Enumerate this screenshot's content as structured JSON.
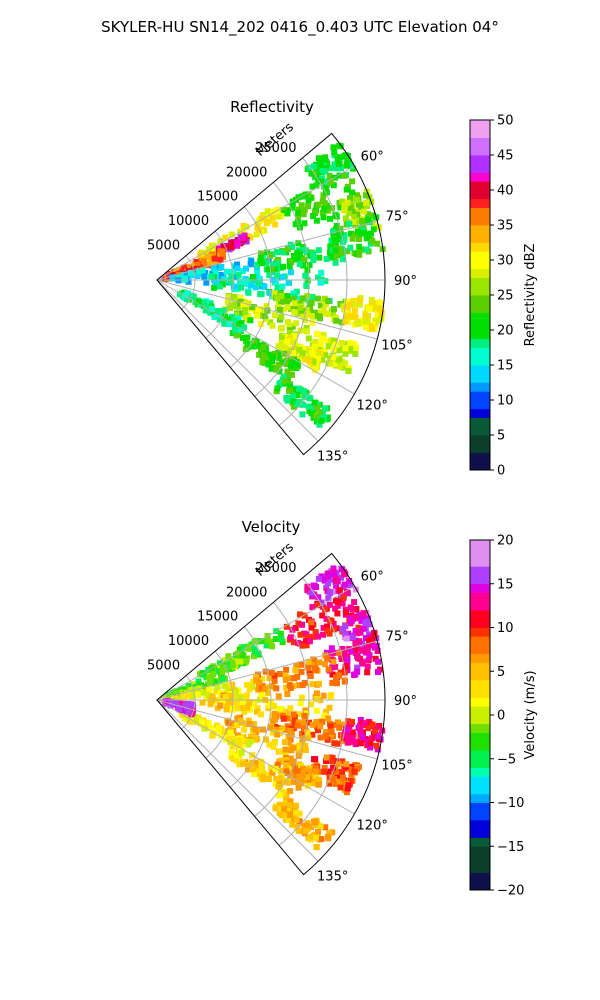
{
  "figure": {
    "suptitle": "SKYLER-HU  SN14_202  0416_0.403 UTC Elevation 04°"
  },
  "chart_data": [
    {
      "type": "heatmap",
      "subtype": "polar-sector (PPI)",
      "title": "Reflectivity",
      "range_axis_label": "Meters",
      "range_ticks": [
        "5000",
        "10000",
        "15000",
        "20000",
        "25000"
      ],
      "range_tick_values": [
        5000,
        10000,
        15000,
        20000,
        25000
      ],
      "range_limit": 30000,
      "azimuth_limits_deg": [
        50,
        140
      ],
      "azimuth_ticks": [
        "60°",
        "75°",
        "90°",
        "105°",
        "120°",
        "135°"
      ],
      "azimuth_tick_values": [
        60,
        75,
        90,
        105,
        120,
        135
      ],
      "grid": true,
      "colorbar": {
        "label": "Reflectivity dBZ",
        "min": 0,
        "max": 50,
        "ticks": [
          "0",
          "5",
          "10",
          "15",
          "20",
          "25",
          "30",
          "35",
          "40",
          "45",
          "50"
        ],
        "tick_values": [
          0,
          5,
          10,
          15,
          20,
          25,
          30,
          35,
          40,
          45,
          50
        ]
      },
      "echo_regions": [
        {
          "az": 57,
          "r": 27500,
          "w_az": 4,
          "w_r": 3000,
          "value": 20
        },
        {
          "az": 65,
          "r": 24000,
          "w_az": 6,
          "w_r": 5000,
          "value": 22
        },
        {
          "az": 72,
          "r": 28500,
          "w_az": 5,
          "w_r": 2500,
          "value": 26
        },
        {
          "az": 78,
          "r": 27000,
          "w_az": 5,
          "w_r": 4000,
          "value": 21
        },
        {
          "az": 62,
          "r": 12500,
          "w_az": 4,
          "w_r": 6000,
          "value": 30
        },
        {
          "az": 65,
          "r": 11000,
          "w_az": 2,
          "w_r": 2000,
          "value": 42
        },
        {
          "az": 70,
          "r": 5500,
          "w_az": 5,
          "w_r": 4000,
          "value": 36
        },
        {
          "az": 78,
          "r": 3500,
          "w_az": 4,
          "w_r": 2500,
          "value": 38
        },
        {
          "az": 86,
          "r": 9000,
          "w_az": 8,
          "w_r": 7000,
          "value": 14
        },
        {
          "az": 92,
          "r": 15000,
          "w_az": 6,
          "w_r": 8000,
          "value": 17
        },
        {
          "az": 80,
          "r": 19000,
          "w_az": 5,
          "w_r": 6000,
          "value": 20
        },
        {
          "az": 100,
          "r": 20500,
          "w_az": 4,
          "w_r": 5000,
          "value": 26
        },
        {
          "az": 99,
          "r": 28000,
          "w_az": 4,
          "w_r": 3000,
          "value": 30
        },
        {
          "az": 108,
          "r": 15500,
          "w_az": 6,
          "w_r": 6000,
          "value": 27
        },
        {
          "az": 112,
          "r": 25000,
          "w_az": 4,
          "w_r": 3000,
          "value": 28
        },
        {
          "az": 117,
          "r": 21000,
          "w_az": 3,
          "w_r": 3000,
          "value": 29
        },
        {
          "az": 124,
          "r": 17000,
          "w_az": 4,
          "w_r": 5000,
          "value": 22
        },
        {
          "az": 130,
          "r": 25000,
          "w_az": 3,
          "w_r": 4000,
          "value": 20
        },
        {
          "az": 118,
          "r": 8500,
          "w_az": 5,
          "w_r": 5000,
          "value": 18
        }
      ]
    },
    {
      "type": "heatmap",
      "subtype": "polar-sector (PPI)",
      "title": "Velocity",
      "range_axis_label": "Meters",
      "range_ticks": [
        "5000",
        "10000",
        "15000",
        "20000",
        "25000"
      ],
      "range_tick_values": [
        5000,
        10000,
        15000,
        20000,
        25000
      ],
      "range_limit": 30000,
      "azimuth_limits_deg": [
        50,
        140
      ],
      "azimuth_ticks": [
        "60°",
        "75°",
        "90°",
        "105°",
        "120°",
        "135°"
      ],
      "azimuth_tick_values": [
        60,
        75,
        90,
        105,
        120,
        135
      ],
      "grid": true,
      "colorbar": {
        "label": "Velocity (m/s)",
        "min": -20,
        "max": 20,
        "ticks": [
          "−20",
          "−15",
          "−10",
          "−5",
          "0",
          "5",
          "10",
          "15",
          "20"
        ],
        "tick_values": [
          -20,
          -15,
          -10,
          -5,
          0,
          5,
          10,
          15,
          20
        ]
      },
      "echo_regions": [
        {
          "az": 57,
          "r": 27500,
          "w_az": 4,
          "w_r": 3000,
          "value": 15
        },
        {
          "az": 65,
          "r": 24000,
          "w_az": 6,
          "w_r": 5000,
          "value": 11
        },
        {
          "az": 72,
          "r": 28500,
          "w_az": 5,
          "w_r": 2500,
          "value": 15
        },
        {
          "az": 78,
          "r": 27000,
          "w_az": 5,
          "w_r": 4000,
          "value": 13
        },
        {
          "az": 62,
          "r": 12500,
          "w_az": 4,
          "w_r": 6000,
          "value": -3
        },
        {
          "az": 65,
          "r": 11000,
          "w_az": 2,
          "w_r": 2000,
          "value": -2
        },
        {
          "az": 70,
          "r": 5500,
          "w_az": 5,
          "w_r": 4000,
          "value": -3
        },
        {
          "az": 78,
          "r": 3500,
          "w_az": 4,
          "w_r": 2500,
          "value": -1
        },
        {
          "az": 86,
          "r": 9000,
          "w_az": 8,
          "w_r": 7000,
          "value": 2
        },
        {
          "az": 92,
          "r": 15000,
          "w_az": 6,
          "w_r": 8000,
          "value": 4
        },
        {
          "az": 80,
          "r": 19000,
          "w_az": 5,
          "w_r": 6000,
          "value": 7
        },
        {
          "az": 100,
          "r": 20500,
          "w_az": 4,
          "w_r": 5000,
          "value": 8
        },
        {
          "az": 99,
          "r": 28000,
          "w_az": 4,
          "w_r": 3000,
          "value": 12
        },
        {
          "az": 108,
          "r": 15500,
          "w_az": 6,
          "w_r": 6000,
          "value": 5
        },
        {
          "az": 112,
          "r": 25000,
          "w_az": 4,
          "w_r": 3000,
          "value": 9
        },
        {
          "az": 117,
          "r": 21000,
          "w_az": 3,
          "w_r": 3000,
          "value": 6
        },
        {
          "az": 124,
          "r": 17000,
          "w_az": 4,
          "w_r": 5000,
          "value": 4
        },
        {
          "az": 130,
          "r": 25000,
          "w_az": 3,
          "w_r": 4000,
          "value": 5
        },
        {
          "az": 118,
          "r": 8500,
          "w_az": 5,
          "w_r": 5000,
          "value": 2
        },
        {
          "az": 105,
          "r": 3000,
          "w_az": 8,
          "w_r": 2000,
          "value": 15
        }
      ]
    }
  ],
  "colors": {
    "background": "#ffffff",
    "grid": "#b0b0b0",
    "frame": "#000000"
  }
}
